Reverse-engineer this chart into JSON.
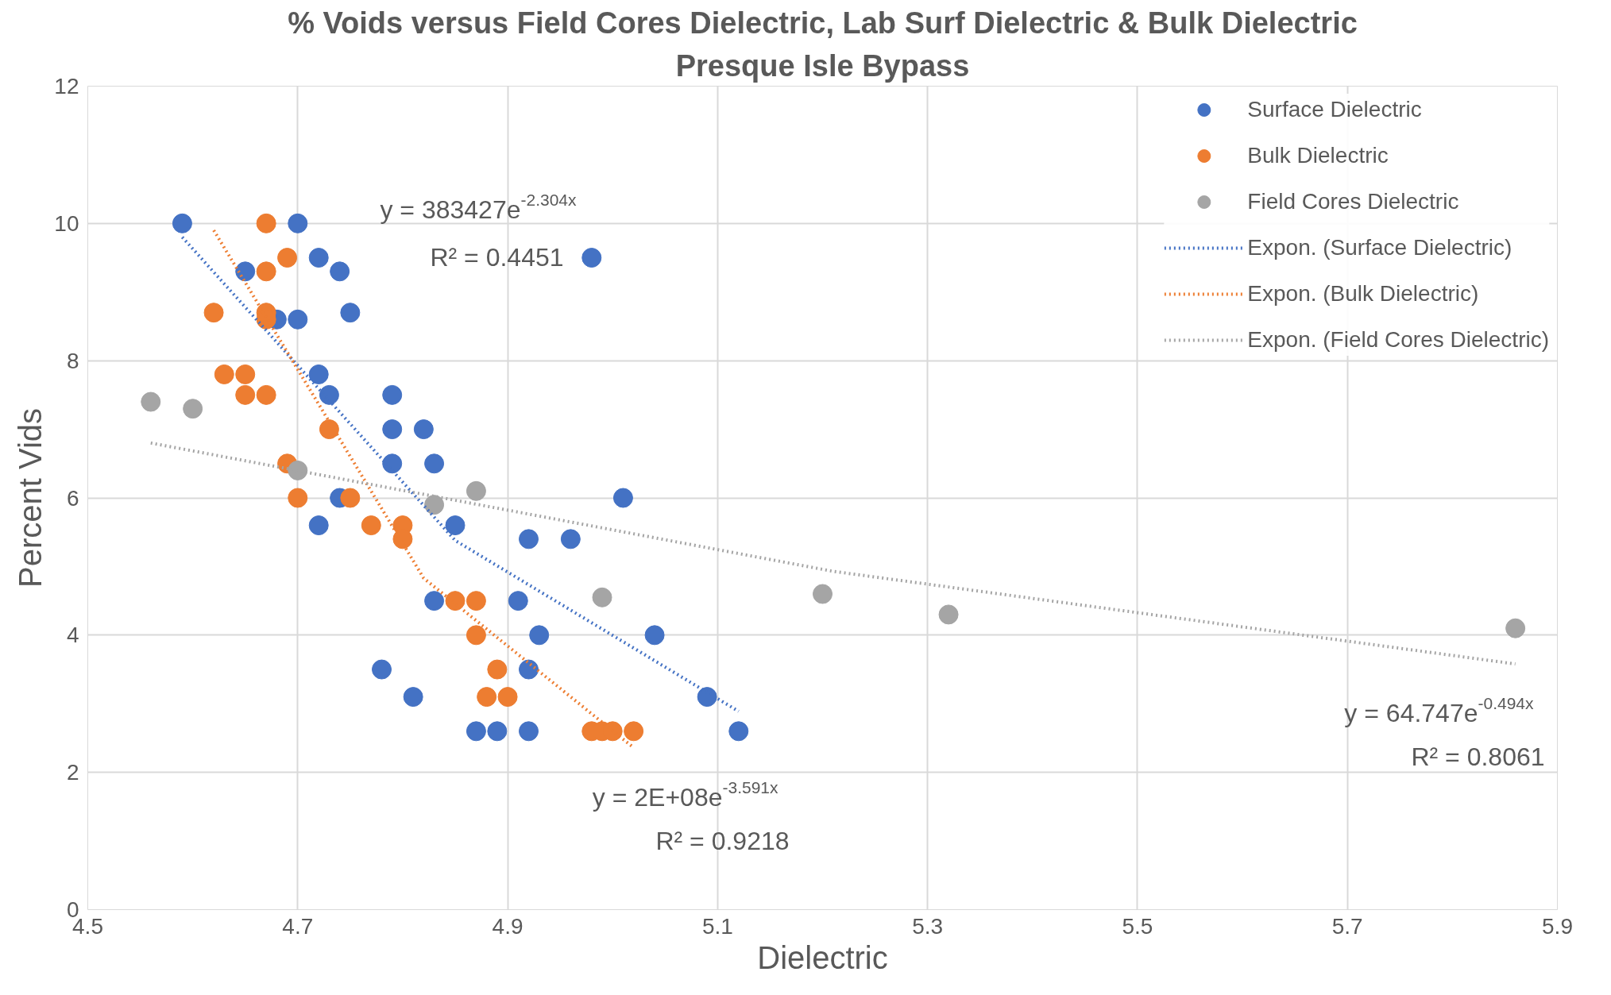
{
  "chart_data": {
    "type": "scatter",
    "title": "% Voids versus Field Cores Dielectric, Lab Surf Dielectric & Bulk Dielectric",
    "subtitle": "Presque Isle Bypass",
    "xlabel": "Dielectric",
    "ylabel": "Percent Vids",
    "xlim": [
      4.5,
      5.9
    ],
    "xticks": [
      4.5,
      4.7,
      4.9,
      5.1,
      5.3,
      5.5,
      5.7,
      5.9
    ],
    "ylim": [
      0,
      12
    ],
    "yticks": [
      0,
      2,
      4,
      6,
      8,
      10,
      12
    ],
    "grid": true,
    "legend": "top right",
    "marker": "circle",
    "series": [
      {
        "name": "Surface Dielectric",
        "color": "#4472c4",
        "x": [
          4.59,
          4.65,
          4.7,
          4.72,
          4.74,
          4.75,
          4.68,
          4.7,
          4.72,
          4.73,
          4.79,
          4.79,
          4.82,
          4.79,
          4.83,
          4.74,
          4.72,
          4.85,
          4.92,
          4.96,
          5.01,
          4.98,
          4.83,
          4.91,
          4.93,
          5.04,
          4.78,
          4.92,
          4.81,
          5.09,
          4.87,
          4.89,
          4.92,
          5.12
        ],
        "values": [
          10,
          9.3,
          10,
          9.5,
          9.3,
          8.7,
          8.6,
          8.6,
          7.8,
          7.5,
          7.5,
          7.0,
          7.0,
          6.5,
          6.5,
          6.0,
          5.6,
          5.6,
          5.4,
          5.4,
          6.0,
          9.5,
          4.5,
          4.5,
          4.0,
          4.0,
          3.5,
          3.5,
          3.1,
          3.1,
          2.6,
          2.6,
          2.6,
          2.6
        ]
      },
      {
        "name": "Bulk Dielectric",
        "color": "#ed7d31",
        "x": [
          4.67,
          4.69,
          4.67,
          4.62,
          4.67,
          4.67,
          4.63,
          4.65,
          4.65,
          4.67,
          4.73,
          4.69,
          4.7,
          4.75,
          4.77,
          4.8,
          4.8,
          4.85,
          4.87,
          4.87,
          4.89,
          4.88,
          4.9,
          4.98,
          4.99,
          5.0,
          5.02
        ],
        "values": [
          10,
          9.5,
          9.3,
          8.7,
          8.7,
          8.6,
          7.8,
          7.8,
          7.5,
          7.5,
          7.0,
          6.5,
          6.0,
          6.0,
          5.6,
          5.6,
          5.4,
          4.5,
          4.5,
          4.0,
          3.5,
          3.1,
          3.1,
          2.6,
          2.6,
          2.6,
          2.6
        ]
      },
      {
        "name": "Field Cores Dielectric",
        "color": "#a5a5a5",
        "x": [
          4.56,
          4.6,
          4.7,
          4.83,
          4.87,
          4.99,
          5.2,
          5.32,
          5.86
        ],
        "values": [
          7.4,
          7.3,
          6.4,
          5.9,
          6.1,
          4.55,
          4.6,
          4.3,
          4.1
        ]
      },
      {
        "name": "Expon. (Surface Dielectric)",
        "type": "line",
        "line_style": "dotted",
        "marker": "none",
        "color": "#4472c4",
        "x": [
          4.59,
          4.85,
          5.12
        ],
        "values": [
          9.8,
          5.38,
          2.89
        ]
      },
      {
        "name": "Expon. (Bulk Dielectric)",
        "type": "line",
        "line_style": "dotted",
        "marker": "none",
        "color": "#ed7d31",
        "x": [
          4.62,
          4.82,
          5.02
        ],
        "values": [
          9.9,
          4.83,
          2.36
        ]
      },
      {
        "name": "Expon. (Field Cores Dielectric)",
        "type": "line",
        "line_style": "dotted",
        "marker": "none",
        "color": "#a5a5a5",
        "x": [
          4.56,
          5.21,
          5.86
        ],
        "values": [
          6.8,
          4.93,
          3.58
        ]
      }
    ],
    "annotations": [
      "y = 383427e$^{-2.304x}$",
      "R² = 0.4451",
      "y = 2E+08e$^{-3.591x}$",
      "R² = 0.9218",
      "y = 64.747e$^{-0.494x}$",
      "R² = 0.8061"
    ]
  }
}
